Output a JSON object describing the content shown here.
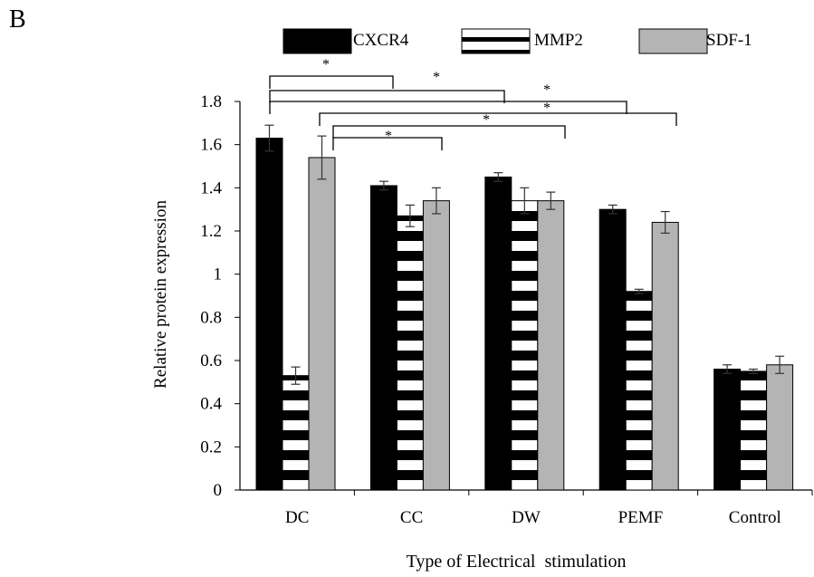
{
  "panel_label": "B",
  "chart_data": {
    "type": "bar",
    "categories": [
      "DC",
      "CC",
      "DW",
      "PEMF",
      "Control"
    ],
    "series": [
      {
        "name": "CXCR4",
        "values": [
          1.63,
          1.41,
          1.45,
          1.3,
          0.56
        ],
        "errors": [
          0.06,
          0.02,
          0.02,
          0.02,
          0.02
        ],
        "fill": "#000000",
        "pattern": "solid"
      },
      {
        "name": "MMP2",
        "values": [
          0.53,
          1.27,
          1.34,
          0.92,
          0.55
        ],
        "errors": [
          0.04,
          0.05,
          0.06,
          0.01,
          0.01
        ],
        "fill": "#000000",
        "pattern": "horizontal-stripes"
      },
      {
        "name": "SDF-1",
        "values": [
          1.54,
          1.34,
          1.34,
          1.24,
          0.58
        ],
        "errors": [
          0.1,
          0.06,
          0.04,
          0.05,
          0.04
        ],
        "fill": "#b4b4b4",
        "pattern": "solid"
      }
    ],
    "xlabel": "Type of Electrical  stimulation",
    "ylabel": "Relative protein expression",
    "ylim": [
      0,
      1.8
    ],
    "yticks": [
      "0",
      "0.2",
      "0.4",
      "0.6",
      "0.8",
      "1",
      "1.2",
      "1.4",
      "1.6",
      "1.8"
    ],
    "grid": false,
    "legend_position": "top",
    "significance": [
      {
        "from_category": "DC",
        "to_category": "CC",
        "label": "*"
      },
      {
        "from_category": "DC",
        "to_category": "DW",
        "label": "*"
      },
      {
        "from_category": "DC",
        "to_category": "PEMF",
        "label": "*"
      },
      {
        "from_category": "DC",
        "to_category": "Control",
        "label": "*"
      },
      {
        "from_category": "DC",
        "to_category": "Control",
        "label": "*"
      },
      {
        "from_category": "DC",
        "to_category": "CC",
        "label": "*"
      }
    ]
  }
}
